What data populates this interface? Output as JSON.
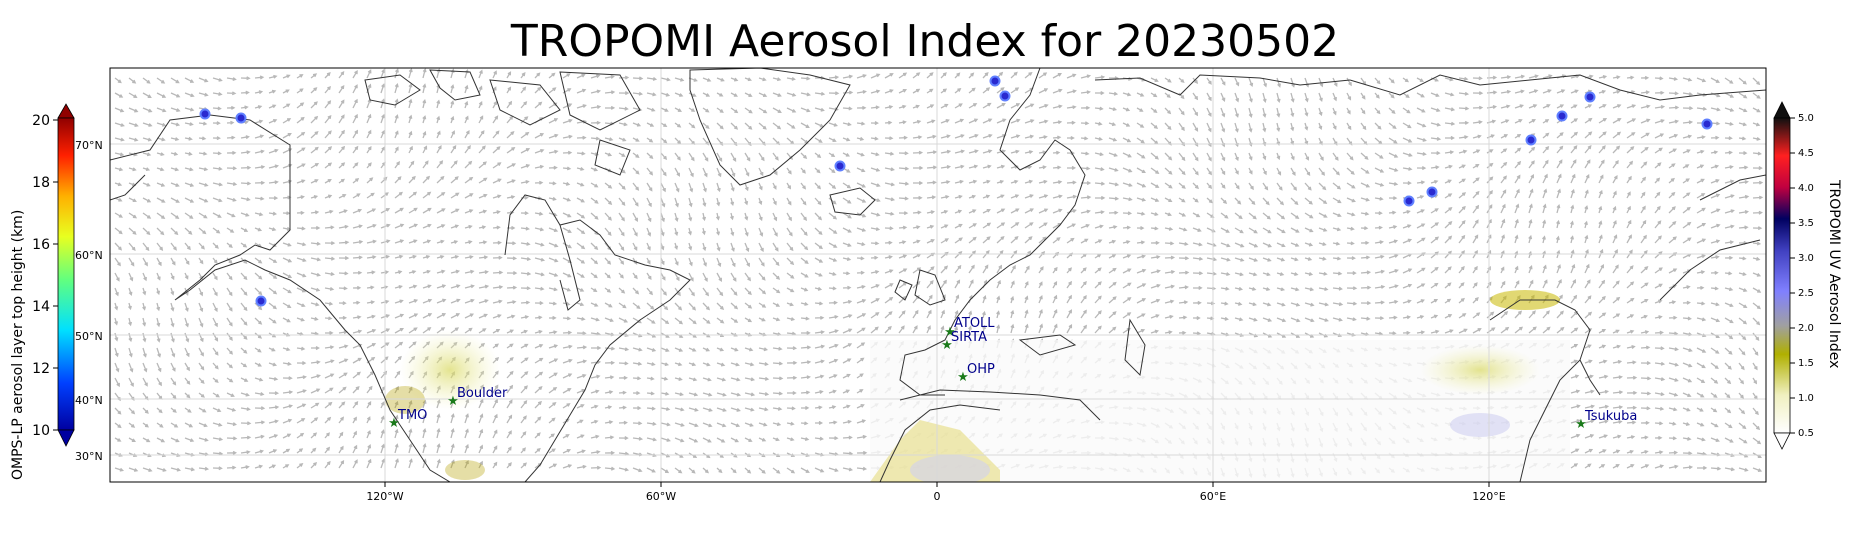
{
  "title": "TROPOMI Aerosol Index for 20230502",
  "left_colorbar": {
    "label": "OMPS-LP aerosol layer top height (km)",
    "ticks": [
      "20",
      "18",
      "16",
      "14",
      "12",
      "10"
    ],
    "lat_ticks": [
      "70°N",
      "60°N",
      "50°N",
      "40°N",
      "30°N"
    ]
  },
  "right_colorbar": {
    "label": "TROPOMI UV Aerosol Index",
    "ticks": [
      "5.0",
      "4.5",
      "4.0",
      "3.5",
      "3.0",
      "2.5",
      "2.0",
      "1.5",
      "1.0",
      "0.5"
    ]
  },
  "lon_ticks": [
    "120°W",
    "60°W",
    "0",
    "60°E",
    "120°E"
  ],
  "stations": [
    {
      "name": "ATOLL"
    },
    {
      "name": "SIRTA"
    },
    {
      "name": "OHP"
    },
    {
      "name": "Boulder"
    },
    {
      "name": "TMO"
    },
    {
      "name": "Tsukuba"
    }
  ],
  "colors": {
    "station_marker": "#1a7a1a",
    "station_label": "#00008b",
    "omps_point": "#2a2ad0",
    "wind_arrow": "#b8b8b8",
    "coastline": "#333333"
  }
}
